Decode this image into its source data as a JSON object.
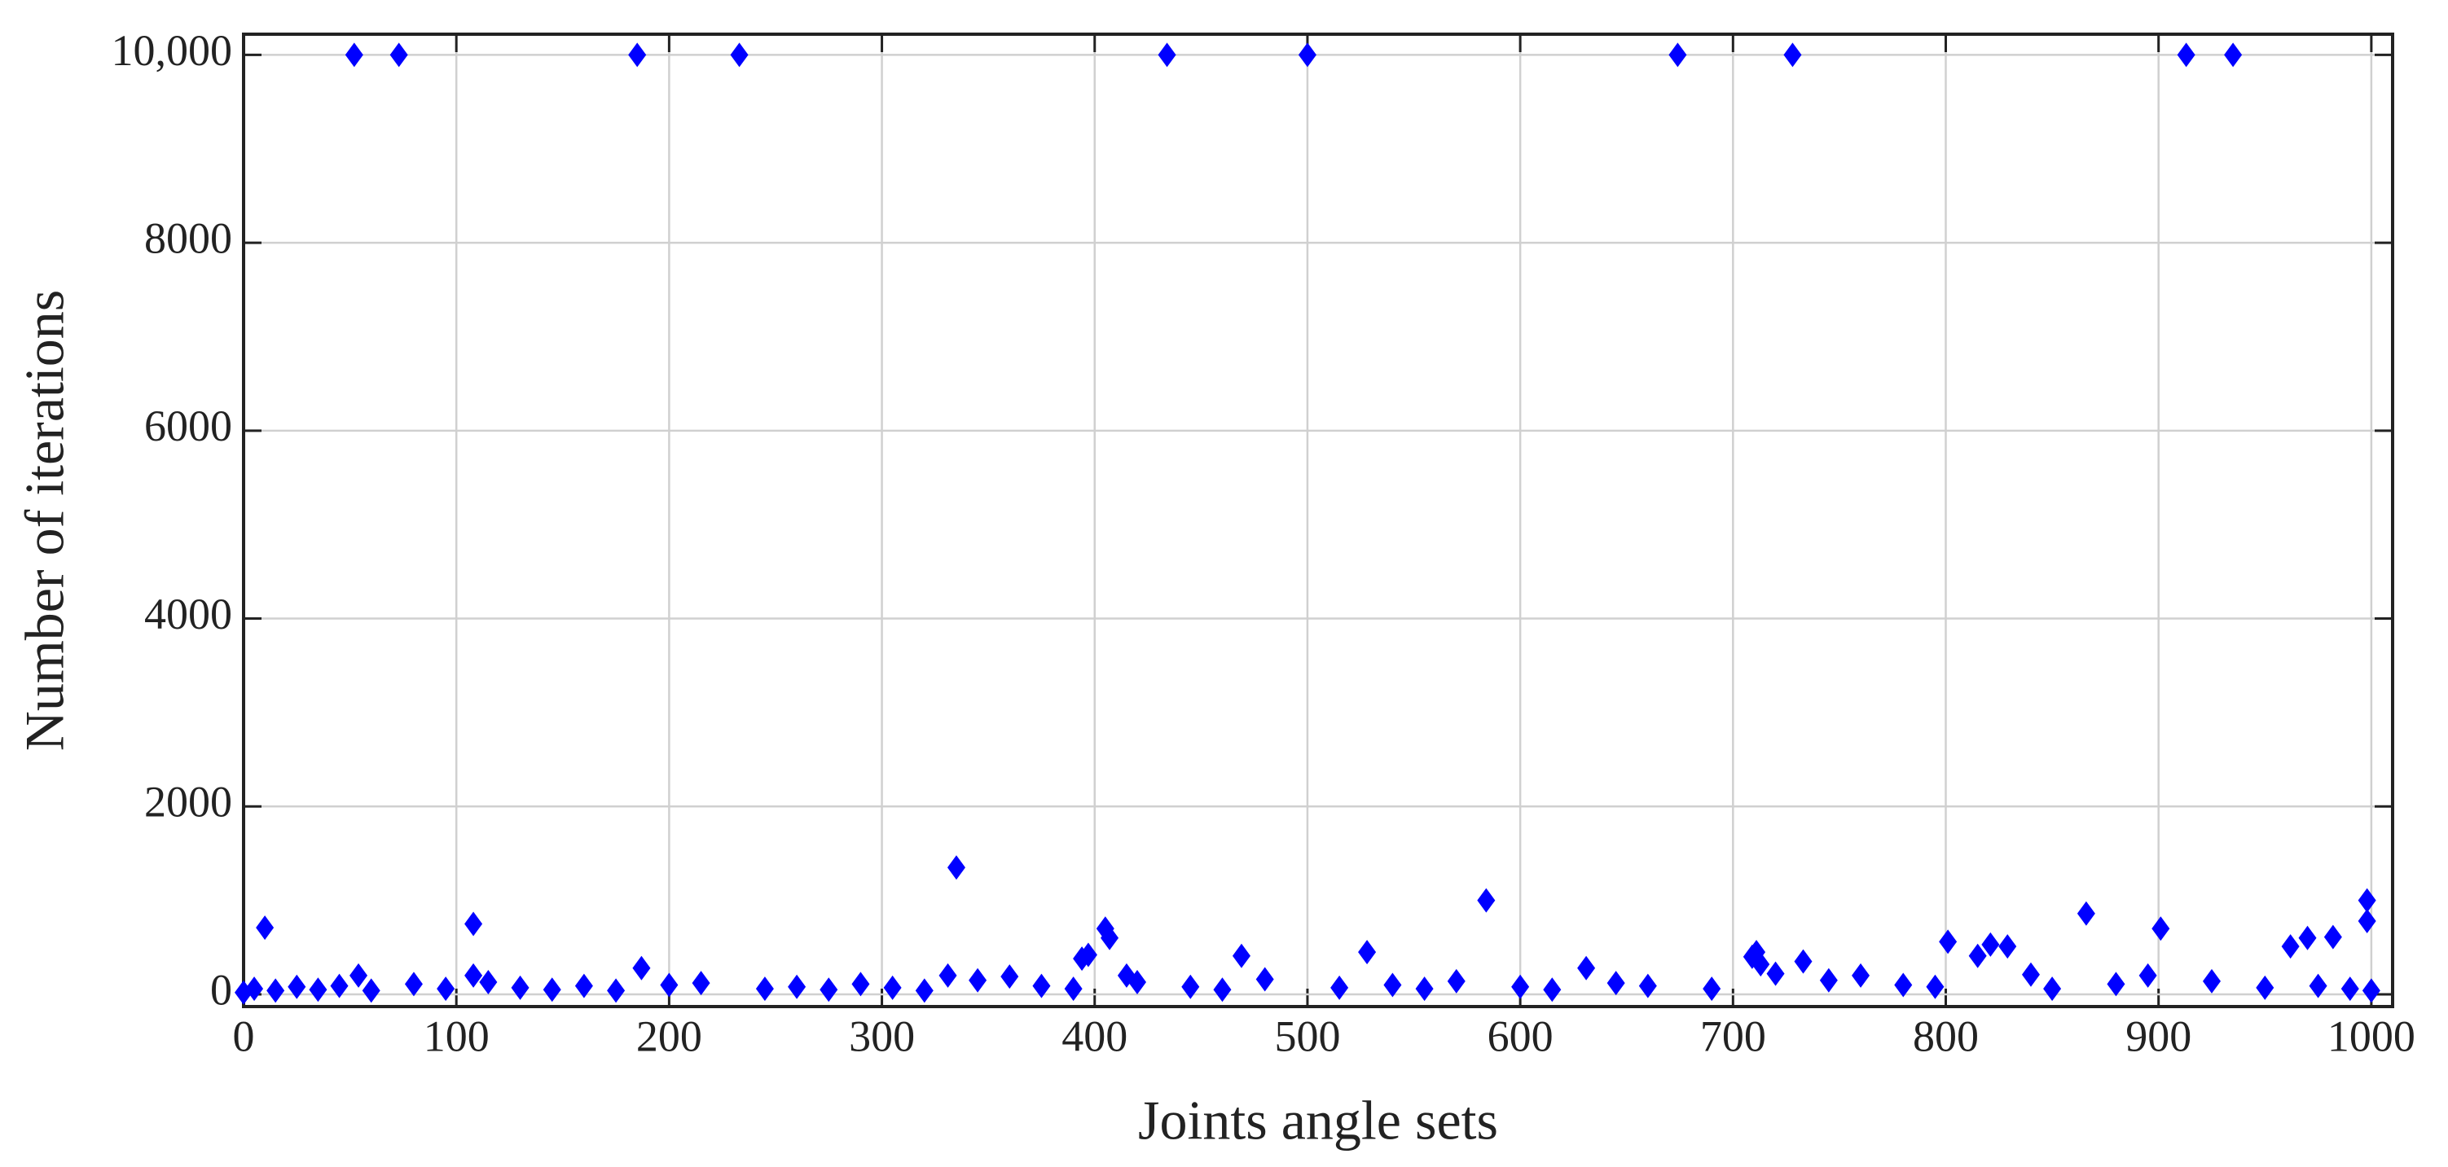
{
  "chart_data": {
    "type": "scatter",
    "x_label": "Joints angle sets",
    "y_label": "Number of iterations",
    "color": "#0000ff",
    "marker": "diamond",
    "grid": true,
    "xlim": [
      0,
      1010
    ],
    "ylim": [
      -130,
      10220
    ],
    "xticks": [
      0,
      100,
      200,
      300,
      400,
      500,
      600,
      700,
      800,
      900,
      1000
    ],
    "yticks": [
      0,
      2000,
      4000,
      6000,
      8000,
      {
        "value": 10000,
        "label": "10,000"
      }
    ],
    "x": [
      52,
      73,
      185,
      233,
      434,
      500,
      674,
      728,
      913,
      935,
      10,
      108,
      335,
      584,
      866,
      901,
      998,
      998,
      801,
      405,
      407,
      394,
      397,
      469,
      528,
      711,
      709,
      733,
      815,
      821,
      829,
      962,
      970,
      982,
      631,
      713,
      54,
      108,
      187,
      331,
      415,
      0,
      5,
      15,
      25,
      35,
      45,
      60,
      80,
      95,
      115,
      130,
      145,
      160,
      175,
      200,
      215,
      245,
      260,
      275,
      290,
      305,
      320,
      345,
      360,
      375,
      390,
      420,
      445,
      460,
      480,
      515,
      540,
      555,
      570,
      600,
      615,
      645,
      660,
      690,
      720,
      745,
      760,
      780,
      795,
      840,
      850,
      880,
      895,
      925,
      950,
      975,
      990,
      1000
    ],
    "values": [
      10000,
      10000,
      10000,
      10000,
      10000,
      10000,
      10000,
      10000,
      10000,
      10000,
      710,
      750,
      1350,
      1000,
      860,
      700,
      1000,
      780,
      560,
      700,
      600,
      380,
      420,
      410,
      450,
      450,
      400,
      350,
      410,
      530,
      510,
      510,
      600,
      610,
      280,
      320,
      200,
      200,
      280,
      200,
      200,
      20,
      60,
      40,
      80,
      50,
      90,
      40,
      110,
      60,
      130,
      70,
      50,
      90,
      40,
      100,
      120,
      60,
      80,
      50,
      110,
      70,
      40,
      150,
      190,
      90,
      60,
      130,
      80,
      50,
      160,
      70,
      100,
      60,
      140,
      80,
      50,
      120,
      90,
      60,
      220,
      150,
      200,
      100,
      80,
      210,
      60,
      110,
      200,
      140,
      70,
      90,
      60,
      40
    ]
  }
}
